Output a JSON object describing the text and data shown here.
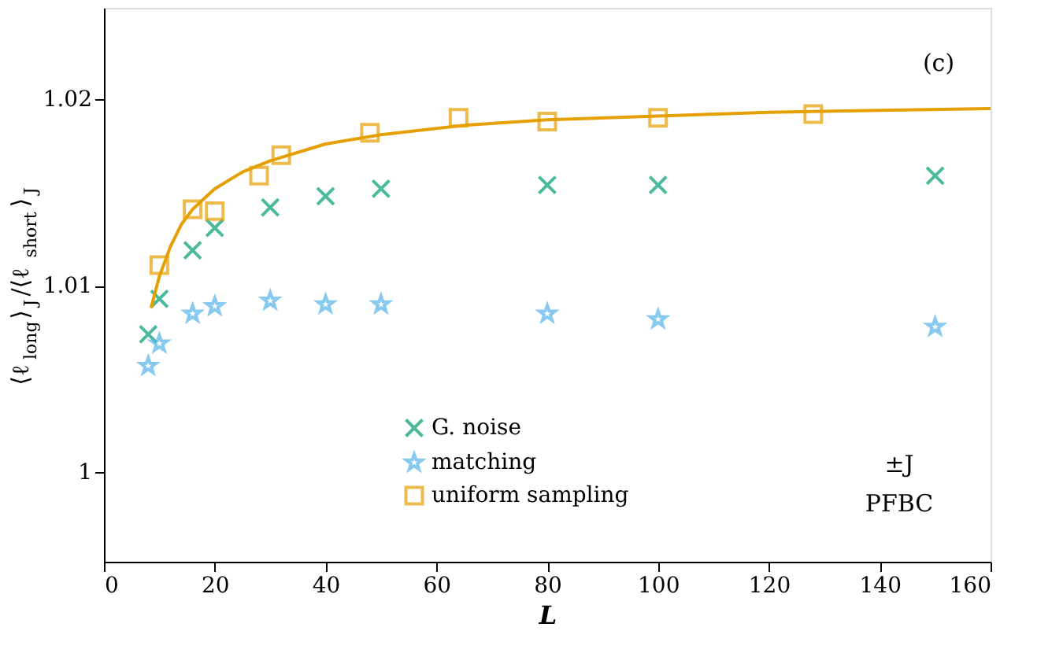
{
  "chart_data": {
    "type": "scatter",
    "xlabel": "L",
    "ylabel": "⟨ℓ$_{long}$⟩$_{J}$/⟨ℓ$_{short}$⟩$_{J}$",
    "xlim": [
      0,
      160
    ],
    "xticks": [
      0,
      20,
      40,
      60,
      80,
      100,
      120,
      140,
      160
    ],
    "ylim": [
      0.9952,
      1.0249
    ],
    "yticks": [
      {
        "value": 1,
        "label": "1"
      },
      1.01,
      1.02
    ],
    "grid": false,
    "legend": "bottom",
    "annotations": [
      "(c)",
      "±J",
      "PFBC"
    ],
    "series": [
      {
        "name": "G. noise",
        "color": "#009e73",
        "marker": "cross",
        "x": [
          8,
          10,
          16,
          20,
          30,
          40,
          50,
          80,
          100,
          150
        ],
        "values": [
          1.0074,
          1.0093,
          1.0119,
          1.0131,
          1.0142,
          1.0148,
          1.0152,
          1.0154,
          1.0154,
          1.0159
        ]
      },
      {
        "name": "matching",
        "color": "#56b4e9",
        "marker": "star",
        "x": [
          8,
          10,
          16,
          20,
          30,
          40,
          50,
          80,
          100,
          150
        ],
        "values": [
          1.0057,
          1.0069,
          1.0085,
          1.0089,
          1.0092,
          1.009,
          1.009,
          1.0085,
          1.0082,
          1.0078
        ]
      },
      {
        "name": "uniform sampling",
        "color": "#e69f00",
        "marker": "square",
        "x": [
          10,
          16,
          20,
          28,
          32,
          48,
          64,
          80,
          100,
          128
        ],
        "values": [
          1.0111,
          1.0141,
          1.014,
          1.0159,
          1.017,
          1.0182,
          1.019,
          1.0188,
          1.019,
          1.0192
        ]
      },
      {
        "type": "line",
        "color": "#e69f00",
        "marker": "none",
        "line_style": "solid",
        "x": [
          8.5,
          10,
          12,
          14,
          16,
          20,
          25,
          30,
          40,
          50,
          65,
          80,
          100,
          120,
          140,
          160
        ],
        "values": [
          1.0088,
          1.0105,
          1.0121,
          1.0133,
          1.0141,
          1.0152,
          1.0161,
          1.0167,
          1.0176,
          1.0181,
          1.0186,
          1.0189,
          1.0191,
          1.0193,
          1.0194,
          1.0195
        ]
      }
    ]
  }
}
